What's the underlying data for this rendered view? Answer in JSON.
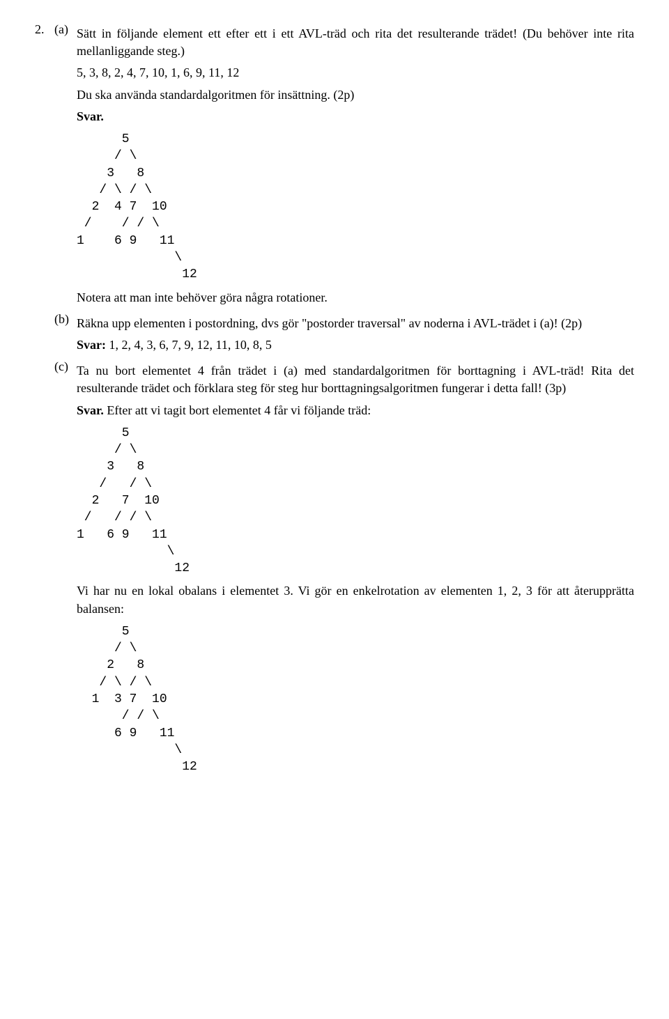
{
  "q2": {
    "number": "2.",
    "a": {
      "letter": "(a)",
      "text1": "Sätt in följande element ett efter ett i ett AVL-träd och rita det resulterande trädet! (Du behöver inte rita mellanliggande steg.)",
      "numbers": "5, 3, 8, 2, 4, 7, 10, 1, 6, 9, 11, 12",
      "text2": "Du ska använda standardalgoritmen för insättning. (2p)",
      "svar_label": "Svar.",
      "tree": "      5\n     / \\\n    3   8\n   / \\ / \\\n  2  4 7  10\n /    / / \\\n1    6 9   11\n             \\\n              12",
      "note": "Notera att man inte behöver göra några rotationer."
    },
    "b": {
      "letter": "(b)",
      "text": "Räkna upp elementen i postordning, dvs gör \"postorder traversal\" av noderna i AVL-trädet i (a)! (2p)",
      "svar_label": "Svar:",
      "svar_text": " 1, 2, 4, 3, 6, 7, 9, 12, 11, 10, 8, 5"
    },
    "c": {
      "letter": "(c)",
      "text": "Ta nu bort elementet 4 från trädet i (a) med standardalgoritmen för borttagning i AVL-träd! Rita det resulterande trädet och förklara steg för steg hur borttagningsalgoritmen fungerar i detta fall! (3p)",
      "svar_label": "Svar.",
      "svar_text": " Efter att vi tagit bort elementet 4 får vi följande träd:",
      "tree1": "      5\n     / \\\n    3   8\n   /   / \\\n  2   7  10\n /   / / \\\n1   6 9   11\n            \\\n             12",
      "mid_text": "Vi har nu en lokal obalans i elementet 3. Vi gör en enkelrotation av elementen 1, 2, 3 för att återupprätta balansen:",
      "tree2": "      5\n     / \\\n    2   8\n   / \\ / \\\n  1  3 7  10\n      / / \\\n     6 9   11\n             \\\n              12"
    }
  }
}
